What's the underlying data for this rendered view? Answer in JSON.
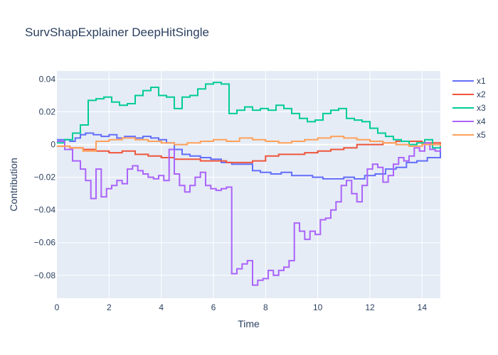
{
  "chart_data": {
    "type": "line",
    "line_shape": "step",
    "title": "SurvShapExplainer DeepHitSingle",
    "xlabel": "Time",
    "ylabel": "Contribution",
    "xlim": [
      0,
      14.7
    ],
    "ylim": [
      -0.094,
      0.045
    ],
    "x_ticks": [
      0,
      2,
      4,
      6,
      8,
      10,
      12,
      14
    ],
    "x_tick_labels": [
      "0",
      "2",
      "4",
      "6",
      "8",
      "10",
      "12",
      "14"
    ],
    "y_ticks": [
      0.04,
      0.02,
      0,
      -0.02,
      -0.04,
      -0.06,
      -0.08
    ],
    "y_tick_labels": [
      "0.04",
      "0.02",
      "0",
      "−0.02",
      "−0.04",
      "−0.06",
      "−0.08"
    ],
    "grid": true,
    "legend_position": "right",
    "series": [
      {
        "name": "x1",
        "color": "#636efa",
        "x": [
          0,
          0.5,
          0.7,
          0.9,
          1.1,
          1.4,
          1.7,
          2.0,
          2.3,
          2.6,
          3.0,
          3.3,
          3.6,
          3.9,
          4.2,
          4.5,
          4.8,
          5.1,
          5.5,
          5.9,
          6.3,
          6.7,
          7.1,
          7.5,
          7.8,
          8.2,
          8.6,
          9.0,
          9.4,
          9.8,
          10.2,
          10.6,
          11.0,
          11.4,
          11.8,
          12.2,
          12.6,
          13.0,
          13.4,
          13.8,
          14.2,
          14.7
        ],
        "y": [
          0.003,
          0.002,
          0.004,
          0.006,
          0.007,
          0.006,
          0.005,
          0.006,
          0.004,
          0.005,
          0.004,
          0.005,
          0.004,
          0.003,
          0.001,
          -0.003,
          -0.006,
          -0.007,
          -0.008,
          -0.009,
          -0.011,
          -0.012,
          -0.012,
          -0.016,
          -0.017,
          -0.018,
          -0.017,
          -0.019,
          -0.019,
          -0.02,
          -0.021,
          -0.021,
          -0.02,
          -0.021,
          -0.019,
          -0.018,
          -0.015,
          -0.014,
          -0.011,
          -0.01,
          -0.008,
          -0.003
        ]
      },
      {
        "name": "x2",
        "color": "#ef553b",
        "x": [
          0,
          0.5,
          1.0,
          1.5,
          2.0,
          2.5,
          3.0,
          3.5,
          4.0,
          4.5,
          5.0,
          5.5,
          6.0,
          6.5,
          7.0,
          7.5,
          8.0,
          8.5,
          9.0,
          9.5,
          10.0,
          10.5,
          11.0,
          11.5,
          12.0,
          12.5,
          13.0,
          13.5,
          14.0,
          14.7
        ],
        "y": [
          -0.001,
          -0.002,
          -0.003,
          -0.004,
          -0.005,
          -0.004,
          -0.006,
          -0.007,
          -0.008,
          -0.009,
          -0.009,
          -0.01,
          -0.01,
          -0.011,
          -0.011,
          -0.01,
          -0.007,
          -0.006,
          -0.006,
          -0.005,
          -0.004,
          -0.003,
          -0.002,
          0.0,
          0.0,
          0.001,
          0.002,
          0.002,
          0.001,
          0.0
        ]
      },
      {
        "name": "x3",
        "color": "#00cc96",
        "x": [
          0,
          0.3,
          0.6,
          0.9,
          1.2,
          1.5,
          1.8,
          2.1,
          2.4,
          2.7,
          3.0,
          3.3,
          3.6,
          3.9,
          4.2,
          4.5,
          4.8,
          5.1,
          5.4,
          5.7,
          6.0,
          6.3,
          6.6,
          6.9,
          7.2,
          7.5,
          7.8,
          8.1,
          8.4,
          8.7,
          9.0,
          9.3,
          9.6,
          9.9,
          10.2,
          10.5,
          10.8,
          11.1,
          11.4,
          11.7,
          12.0,
          12.3,
          12.6,
          12.9,
          13.2,
          13.5,
          13.8,
          14.1,
          14.4,
          14.7
        ],
        "y": [
          0.001,
          0.003,
          0.007,
          0.012,
          0.027,
          0.028,
          0.029,
          0.026,
          0.024,
          0.025,
          0.03,
          0.033,
          0.035,
          0.03,
          0.029,
          0.022,
          0.029,
          0.03,
          0.034,
          0.037,
          0.038,
          0.037,
          0.019,
          0.021,
          0.023,
          0.021,
          0.022,
          0.021,
          0.024,
          0.022,
          0.019,
          0.016,
          0.014,
          0.015,
          0.019,
          0.021,
          0.022,
          0.016,
          0.015,
          0.014,
          0.01,
          0.007,
          0.005,
          0.003,
          0.002,
          0.0,
          0.001,
          0.003,
          -0.002,
          -0.001
        ]
      },
      {
        "name": "x4",
        "color": "#ab63fa",
        "x": [
          0,
          0.3,
          0.6,
          0.9,
          1.1,
          1.3,
          1.5,
          1.7,
          1.9,
          2.1,
          2.3,
          2.5,
          2.7,
          2.9,
          3.1,
          3.3,
          3.5,
          3.7,
          3.9,
          4.1,
          4.3,
          4.5,
          4.7,
          4.9,
          5.1,
          5.3,
          5.5,
          5.7,
          5.9,
          6.1,
          6.3,
          6.5,
          6.7,
          6.9,
          7.1,
          7.3,
          7.5,
          7.7,
          7.9,
          8.1,
          8.3,
          8.5,
          8.7,
          8.9,
          9.1,
          9.3,
          9.5,
          9.7,
          9.9,
          10.1,
          10.3,
          10.5,
          10.7,
          10.9,
          11.1,
          11.3,
          11.5,
          11.7,
          11.9,
          12.1,
          12.3,
          12.5,
          12.7,
          12.9,
          13.1,
          13.3,
          13.5,
          13.7,
          13.9,
          14.1,
          14.3,
          14.5,
          14.7
        ],
        "y": [
          0.002,
          -0.003,
          -0.01,
          -0.015,
          -0.022,
          -0.033,
          -0.015,
          -0.032,
          -0.027,
          -0.025,
          -0.022,
          -0.024,
          -0.015,
          -0.013,
          -0.016,
          -0.018,
          -0.02,
          -0.021,
          -0.019,
          -0.022,
          -0.003,
          -0.018,
          -0.025,
          -0.029,
          -0.025,
          -0.02,
          -0.017,
          -0.025,
          -0.027,
          -0.028,
          -0.027,
          -0.026,
          -0.079,
          -0.076,
          -0.073,
          -0.071,
          -0.086,
          -0.083,
          -0.082,
          -0.077,
          -0.08,
          -0.077,
          -0.075,
          -0.071,
          -0.048,
          -0.053,
          -0.058,
          -0.053,
          -0.055,
          -0.046,
          -0.045,
          -0.04,
          -0.035,
          -0.025,
          -0.022,
          -0.03,
          -0.035,
          -0.025,
          -0.015,
          -0.012,
          -0.014,
          -0.023,
          -0.019,
          -0.012,
          -0.008,
          -0.01,
          -0.007,
          -0.002,
          -0.004,
          0.001,
          -0.003,
          -0.004,
          -0.002
        ]
      },
      {
        "name": "x5",
        "color": "#ffa15a",
        "x": [
          0,
          0.5,
          1.0,
          1.5,
          2.0,
          2.5,
          3.0,
          3.5,
          4.0,
          4.5,
          5.0,
          5.5,
          6.0,
          6.5,
          7.0,
          7.5,
          8.0,
          8.5,
          9.0,
          9.5,
          10.0,
          10.5,
          11.0,
          11.5,
          12.0,
          12.5,
          13.0,
          13.5,
          14.0,
          14.7
        ],
        "y": [
          -0.001,
          -0.002,
          -0.004,
          0.002,
          0.003,
          0.004,
          0.003,
          0.002,
          0.001,
          0.0,
          0.001,
          0.002,
          0.003,
          0.002,
          0.004,
          0.003,
          0.002,
          0.001,
          0.002,
          0.003,
          0.004,
          0.005,
          0.004,
          0.003,
          0.002,
          0.001,
          0.0,
          -0.001,
          0.0,
          -0.001
        ]
      }
    ]
  }
}
